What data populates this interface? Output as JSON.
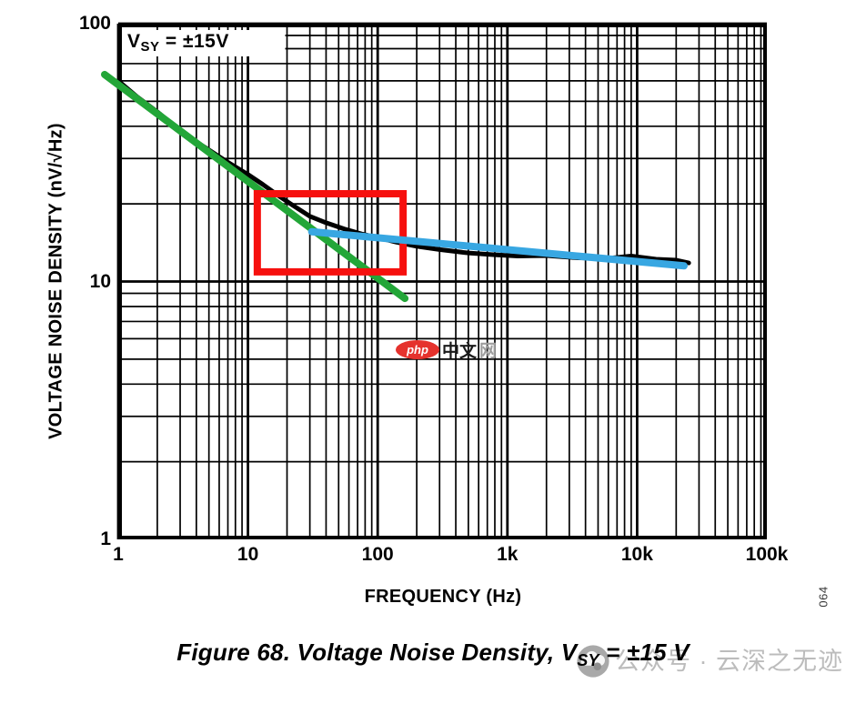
{
  "figure": {
    "y_axis_title": "VOLTAGE NOISE DENSITY (nV/√Hz)",
    "x_axis_title": "FREQUENCY (Hz)",
    "fig_code": "064",
    "condition_label": {
      "prefix": "V",
      "sub": "SY",
      "suffix": " = ±15V"
    },
    "caption": {
      "prefix": "Figure 68. Voltage Noise Density, V",
      "sub": "SY",
      "suffix": " = ±15 V"
    }
  },
  "watermarks": {
    "php": {
      "badge": "php",
      "text_dark": "中文",
      "text_light": "网",
      "badge_color": "#e5322d"
    },
    "bottom": {
      "text": "公众号 · 云深之无迹",
      "color": "#bcbcbc"
    }
  },
  "chart_data": {
    "type": "line",
    "x_scale": "log",
    "y_scale": "log",
    "xlim": [
      1,
      100000
    ],
    "ylim": [
      1,
      100
    ],
    "grid": "log-minor-on",
    "xlabel": "FREQUENCY (Hz)",
    "ylabel": "VOLTAGE NOISE DENSITY (nV/√Hz)",
    "x_ticks": [
      {
        "label": "1",
        "f": 1
      },
      {
        "label": "10",
        "f": 10
      },
      {
        "label": "100",
        "f": 100
      },
      {
        "label": "1k",
        "f": 1000
      },
      {
        "label": "10k",
        "f": 10000
      },
      {
        "label": "100k",
        "f": 100000
      }
    ],
    "y_ticks": [
      {
        "label": "100",
        "v": 100
      },
      {
        "label": "10",
        "v": 10
      },
      {
        "label": "1",
        "v": 1
      }
    ],
    "series": [
      {
        "name": "measured-noise",
        "color": "#000000",
        "width": 5,
        "z": 1,
        "x": [
          1,
          1.4,
          2,
          3,
          4.5,
          7,
          10,
          13,
          17,
          22,
          30,
          40,
          55,
          75,
          100,
          140,
          200,
          300,
          500,
          800,
          1200,
          2000,
          3500,
          6000,
          9000,
          14000,
          20000,
          25000
        ],
        "y": [
          60,
          52,
          45.5,
          38.5,
          33.5,
          29,
          26,
          23.8,
          21.6,
          19.8,
          17.9,
          16.9,
          16.0,
          15.3,
          14.8,
          14.2,
          13.7,
          13.3,
          12.9,
          12.7,
          12.55,
          12.6,
          12.35,
          12.3,
          12.55,
          12.2,
          12.1,
          11.8
        ]
      },
      {
        "name": "one-over-f-asymptote",
        "color": "#23a638",
        "width": 8,
        "z": 2,
        "x": [
          0.785,
          162
        ],
        "y": [
          63.5,
          8.6
        ]
      },
      {
        "name": "flat-noise-asymptote",
        "color": "#38a7e2",
        "width": 8,
        "z": 4,
        "x": [
          31,
          23000
        ],
        "y": [
          15.6,
          11.5
        ]
      }
    ],
    "annotations": {
      "highlight_box": {
        "color": "#f6100e",
        "width": 8,
        "z": 3,
        "f_range": [
          11.8,
          157
        ],
        "v_range": [
          10.9,
          21.9
        ]
      }
    }
  }
}
